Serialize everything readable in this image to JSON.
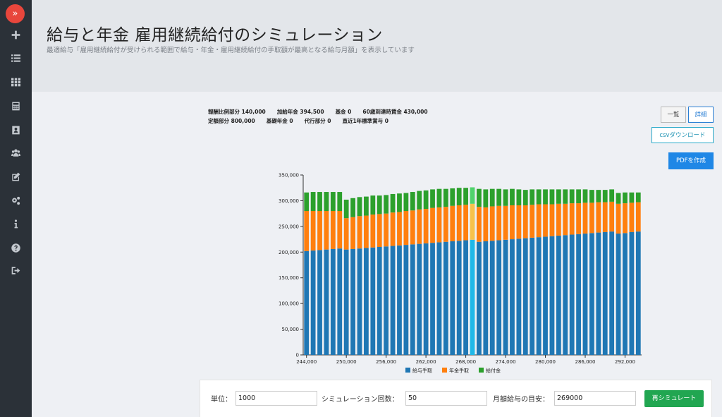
{
  "sidebar": {
    "toggle_glyph": "»",
    "icons": [
      "plus-icon",
      "list-icon",
      "grid-icon",
      "calculator-icon",
      "contact-card-icon",
      "users-icon",
      "edit-icon",
      "cogs-icon",
      "info-icon",
      "help-icon",
      "sign-out-icon"
    ]
  },
  "header": {
    "title": "給与と年金 雇用継続給付のシミュレーション",
    "subtitle": "最適給与「雇用継続給付が受けられる範囲で給与・年金・雇用継続給付の手取額が最高となる給与月額」を表示しています"
  },
  "info": {
    "row1": [
      "報酬比例部分 140,000",
      "加給年金 394,500",
      "基金 0",
      "60歳到達時賃金 430,000"
    ],
    "row2": [
      "定額部分 800,000",
      "基礎年金 0",
      "代行部分 0",
      "直近1年標準賞与 0"
    ]
  },
  "buttons": {
    "list": "一覧",
    "detail": "詳細",
    "csv": "csvダウンロード",
    "pdf": "PDFを作成",
    "resimulate": "再シミュレート"
  },
  "form": {
    "unit_label": "単位：",
    "unit_value": "1000",
    "count_label": "シミュレーション回数：",
    "count_value": "50",
    "target_label": "月額給与の目安：",
    "target_value": "269000"
  },
  "colors": {
    "salary": "#1f77b4",
    "pension": "#ff7f0e",
    "benefit": "#2ca02c",
    "highlight_salary": "#1fb8e8",
    "highlight_pension": "#f7c24a",
    "highlight_benefit": "#4fd36c"
  },
  "chart_data": {
    "type": "bar",
    "stacked": true,
    "x_start": 244000,
    "x_step": 1000,
    "x_tick_labels": [
      "244,000",
      "250,000",
      "256,000",
      "262,000",
      "268,000",
      "274,000",
      "280,000",
      "286,000",
      "292,000"
    ],
    "ylim": [
      0,
      350000
    ],
    "y_tick_labels": [
      "0",
      "50,000",
      "100,000",
      "150,000",
      "200,000",
      "250,000",
      "300,000",
      "350,000"
    ],
    "highlight_x": 269000,
    "legend_position": "bottom",
    "series": [
      {
        "name": "給与手取",
        "values": [
          202000,
          203000,
          204000,
          205000,
          206000,
          207000,
          205000,
          206000,
          207000,
          208000,
          209000,
          210000,
          211000,
          212000,
          213000,
          214000,
          215000,
          216000,
          217000,
          218000,
          219000,
          220000,
          221000,
          222000,
          223000,
          224000,
          220000,
          221000,
          222000,
          223000,
          224000,
          225000,
          226000,
          227000,
          228000,
          229000,
          230000,
          231000,
          232000,
          233000,
          234000,
          235000,
          236000,
          237000,
          238000,
          239000,
          240000,
          236000,
          237000,
          239000,
          240000
        ]
      },
      {
        "name": "年金手取",
        "values": [
          78000,
          77000,
          76000,
          75000,
          74000,
          73000,
          61000,
          62000,
          63000,
          63000,
          64000,
          64000,
          64000,
          65000,
          65000,
          66000,
          66000,
          67000,
          67000,
          68000,
          68000,
          68000,
          69000,
          69000,
          69000,
          70000,
          68000,
          66000,
          67000,
          67000,
          66000,
          66000,
          65000,
          64000,
          64000,
          64000,
          63000,
          62000,
          62000,
          61000,
          61000,
          60000,
          60000,
          59000,
          59000,
          58000,
          58000,
          58000,
          58000,
          57000,
          57000
        ]
      },
      {
        "name": "給付金",
        "values": [
          36000,
          37000,
          37000,
          37000,
          37000,
          37000,
          36000,
          37000,
          37000,
          37000,
          37000,
          36000,
          36000,
          36000,
          36000,
          35000,
          36000,
          36000,
          36000,
          36000,
          36000,
          35000,
          34000,
          34000,
          33000,
          32000,
          35000,
          35000,
          34000,
          33000,
          32000,
          32000,
          31000,
          30000,
          30000,
          29000,
          29000,
          29000,
          28000,
          28000,
          27000,
          27000,
          26000,
          25000,
          24000,
          24000,
          24000,
          21000,
          21000,
          20000,
          19000
        ]
      }
    ]
  }
}
